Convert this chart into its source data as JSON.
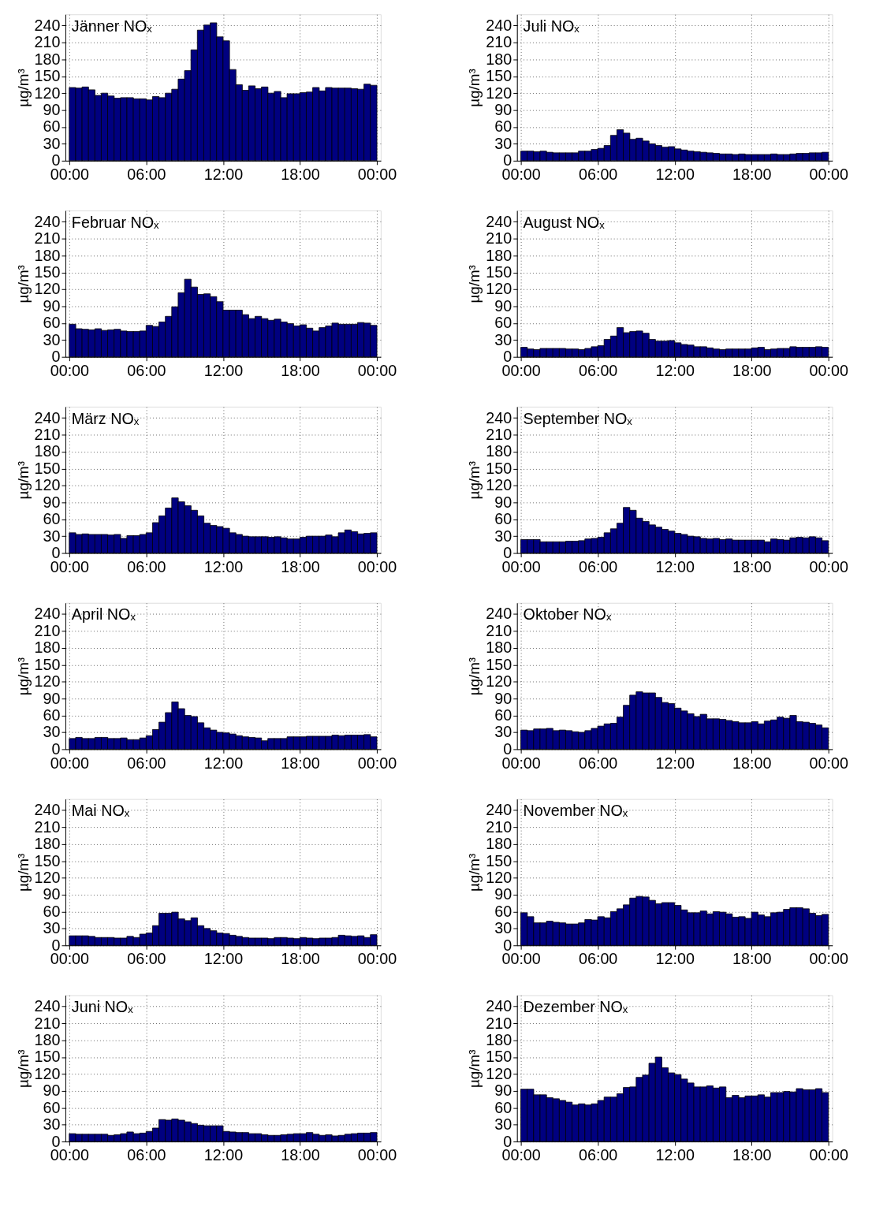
{
  "chart_data": [
    {
      "type": "bar",
      "title": "Jänner NOₓ",
      "ylabel": "µg/m³",
      "color": "#000080",
      "grid": true,
      "xlim": [
        0,
        24
      ],
      "ylim": [
        0,
        260
      ],
      "yticks": [
        0,
        30,
        60,
        90,
        120,
        150,
        180,
        210,
        240
      ],
      "xticks": [
        {
          "value": 0,
          "label": "00:00"
        },
        {
          "value": 6,
          "label": "06:00"
        },
        {
          "value": 12,
          "label": "12:00"
        },
        {
          "value": 18,
          "label": "18:00"
        },
        {
          "value": 24,
          "label": "00:00"
        }
      ],
      "x": [
        0.25,
        0.75,
        1.25,
        1.75,
        2.25,
        2.75,
        3.25,
        3.75,
        4.25,
        4.75,
        5.25,
        5.75,
        6.25,
        6.75,
        7.25,
        7.75,
        8.25,
        8.75,
        9.25,
        9.75,
        10.25,
        10.75,
        11.25,
        11.75,
        12.25,
        12.75,
        13.25,
        13.75,
        14.25,
        14.75,
        15.25,
        15.75,
        16.25,
        16.75,
        17.25,
        17.75,
        18.25,
        18.75,
        19.25,
        19.75,
        20.25,
        20.75,
        21.25,
        21.75,
        22.25,
        22.75,
        23.25,
        23.75
      ],
      "values": [
        130,
        129,
        131,
        126,
        116,
        120,
        115,
        111,
        112,
        112,
        110,
        110,
        108,
        114,
        112,
        120,
        127,
        145,
        160,
        197,
        232,
        241,
        245,
        220,
        213,
        162,
        135,
        125,
        133,
        128,
        131,
        120,
        123,
        112,
        119,
        119,
        121,
        122,
        130,
        124,
        130,
        129,
        129,
        129,
        128,
        127,
        136,
        134
      ]
    },
    {
      "type": "bar",
      "title": "Juli NOₓ",
      "ylabel": "µg/m³",
      "color": "#000080",
      "grid": true,
      "xlim": [
        0,
        24
      ],
      "ylim": [
        0,
        260
      ],
      "yticks": [
        0,
        30,
        60,
        90,
        120,
        150,
        180,
        210,
        240
      ],
      "xticks": [
        {
          "value": 0,
          "label": "00:00"
        },
        {
          "value": 6,
          "label": "06:00"
        },
        {
          "value": 12,
          "label": "12:00"
        },
        {
          "value": 18,
          "label": "18:00"
        },
        {
          "value": 24,
          "label": "00:00"
        }
      ],
      "x": [
        0.25,
        0.75,
        1.25,
        1.75,
        2.25,
        2.75,
        3.25,
        3.75,
        4.25,
        4.75,
        5.25,
        5.75,
        6.25,
        6.75,
        7.25,
        7.75,
        8.25,
        8.75,
        9.25,
        9.75,
        10.25,
        10.75,
        11.25,
        11.75,
        12.25,
        12.75,
        13.25,
        13.75,
        14.25,
        14.75,
        15.25,
        15.75,
        16.25,
        16.75,
        17.25,
        17.75,
        18.25,
        18.75,
        19.25,
        19.75,
        20.25,
        20.75,
        21.25,
        21.75,
        22.25,
        22.75,
        23.25,
        23.75
      ],
      "values": [
        17,
        17,
        16,
        17,
        15,
        14,
        14,
        14,
        14,
        17,
        17,
        20,
        22,
        27,
        45,
        55,
        49,
        38,
        40,
        35,
        30,
        27,
        24,
        25,
        21,
        19,
        17,
        16,
        15,
        14,
        13,
        12,
        12,
        11,
        12,
        11,
        11,
        11,
        11,
        12,
        11,
        11,
        12,
        13,
        13,
        14,
        14,
        15
      ]
    },
    {
      "type": "bar",
      "title": "Februar NOₓ",
      "ylabel": "µg/m³",
      "color": "#000080",
      "grid": true,
      "xlim": [
        0,
        24
      ],
      "ylim": [
        0,
        260
      ],
      "yticks": [
        0,
        30,
        60,
        90,
        120,
        150,
        180,
        210,
        240
      ],
      "xticks": [
        {
          "value": 0,
          "label": "00:00"
        },
        {
          "value": 6,
          "label": "06:00"
        },
        {
          "value": 12,
          "label": "12:00"
        },
        {
          "value": 18,
          "label": "18:00"
        },
        {
          "value": 24,
          "label": "00:00"
        }
      ],
      "x": [
        0.25,
        0.75,
        1.25,
        1.75,
        2.25,
        2.75,
        3.25,
        3.75,
        4.25,
        4.75,
        5.25,
        5.75,
        6.25,
        6.75,
        7.25,
        7.75,
        8.25,
        8.75,
        9.25,
        9.75,
        10.25,
        10.75,
        11.25,
        11.75,
        12.25,
        12.75,
        13.25,
        13.75,
        14.25,
        14.75,
        15.25,
        15.75,
        16.25,
        16.75,
        17.25,
        17.75,
        18.25,
        18.75,
        19.25,
        19.75,
        20.25,
        20.75,
        21.25,
        21.75,
        22.25,
        22.75,
        23.25,
        23.75
      ],
      "values": [
        58,
        50,
        49,
        48,
        50,
        47,
        48,
        49,
        46,
        45,
        45,
        46,
        56,
        54,
        62,
        72,
        89,
        114,
        138,
        124,
        111,
        112,
        107,
        98,
        83,
        83,
        83,
        75,
        68,
        72,
        68,
        65,
        67,
        62,
        59,
        55,
        57,
        51,
        46,
        52,
        55,
        60,
        58,
        58,
        58,
        61,
        60,
        56
      ]
    },
    {
      "type": "bar",
      "title": "August NOₓ",
      "ylabel": "µg/m³",
      "color": "#000080",
      "grid": true,
      "xlim": [
        0,
        24
      ],
      "ylim": [
        0,
        260
      ],
      "yticks": [
        0,
        30,
        60,
        90,
        120,
        150,
        180,
        210,
        240
      ],
      "xticks": [
        {
          "value": 0,
          "label": "00:00"
        },
        {
          "value": 6,
          "label": "06:00"
        },
        {
          "value": 12,
          "label": "12:00"
        },
        {
          "value": 18,
          "label": "18:00"
        },
        {
          "value": 24,
          "label": "00:00"
        }
      ],
      "x": [
        0.25,
        0.75,
        1.25,
        1.75,
        2.25,
        2.75,
        3.25,
        3.75,
        4.25,
        4.75,
        5.25,
        5.75,
        6.25,
        6.75,
        7.25,
        7.75,
        8.25,
        8.75,
        9.25,
        9.75,
        10.25,
        10.75,
        11.25,
        11.75,
        12.25,
        12.75,
        13.25,
        13.75,
        14.25,
        14.75,
        15.25,
        15.75,
        16.25,
        16.75,
        17.25,
        17.75,
        18.25,
        18.75,
        19.25,
        19.75,
        20.25,
        20.75,
        21.25,
        21.75,
        22.25,
        22.75,
        23.25,
        23.75
      ],
      "values": [
        17,
        14,
        13,
        15,
        15,
        15,
        15,
        14,
        14,
        13,
        15,
        18,
        20,
        31,
        37,
        52,
        43,
        45,
        46,
        42,
        31,
        28,
        28,
        29,
        25,
        22,
        21,
        18,
        18,
        16,
        14,
        13,
        14,
        14,
        14,
        14,
        16,
        17,
        13,
        14,
        15,
        15,
        18,
        17,
        17,
        17,
        18,
        17
      ]
    },
    {
      "type": "bar",
      "title": "März NOₓ",
      "ylabel": "µg/m³",
      "color": "#000080",
      "grid": true,
      "xlim": [
        0,
        24
      ],
      "ylim": [
        0,
        260
      ],
      "yticks": [
        0,
        30,
        60,
        90,
        120,
        150,
        180,
        210,
        240
      ],
      "xticks": [
        {
          "value": 0,
          "label": "00:00"
        },
        {
          "value": 6,
          "label": "06:00"
        },
        {
          "value": 12,
          "label": "12:00"
        },
        {
          "value": 18,
          "label": "18:00"
        },
        {
          "value": 24,
          "label": "00:00"
        }
      ],
      "x": [
        0.25,
        0.75,
        1.25,
        1.75,
        2.25,
        2.75,
        3.25,
        3.75,
        4.25,
        4.75,
        5.25,
        5.75,
        6.25,
        6.75,
        7.25,
        7.75,
        8.25,
        8.75,
        9.25,
        9.75,
        10.25,
        10.75,
        11.25,
        11.75,
        12.25,
        12.75,
        13.25,
        13.75,
        14.25,
        14.75,
        15.25,
        15.75,
        16.25,
        16.75,
        17.25,
        17.75,
        18.25,
        18.75,
        19.25,
        19.75,
        20.25,
        20.75,
        21.25,
        21.75,
        22.25,
        22.75,
        23.25,
        23.75
      ],
      "values": [
        36,
        33,
        34,
        33,
        33,
        33,
        32,
        33,
        26,
        31,
        31,
        33,
        36,
        54,
        66,
        80,
        98,
        91,
        84,
        76,
        66,
        53,
        49,
        47,
        44,
        36,
        33,
        30,
        29,
        29,
        29,
        28,
        29,
        27,
        25,
        25,
        28,
        30,
        30,
        30,
        32,
        29,
        36,
        41,
        38,
        34,
        35,
        36
      ]
    },
    {
      "type": "bar",
      "title": "September NOₓ",
      "ylabel": "µg/m³",
      "color": "#000080",
      "grid": true,
      "xlim": [
        0,
        24
      ],
      "ylim": [
        0,
        260
      ],
      "yticks": [
        0,
        30,
        60,
        90,
        120,
        150,
        180,
        210,
        240
      ],
      "xticks": [
        {
          "value": 0,
          "label": "00:00"
        },
        {
          "value": 6,
          "label": "06:00"
        },
        {
          "value": 12,
          "label": "12:00"
        },
        {
          "value": 18,
          "label": "18:00"
        },
        {
          "value": 24,
          "label": "00:00"
        }
      ],
      "x": [
        0.25,
        0.75,
        1.25,
        1.75,
        2.25,
        2.75,
        3.25,
        3.75,
        4.25,
        4.75,
        5.25,
        5.75,
        6.25,
        6.75,
        7.25,
        7.75,
        8.25,
        8.75,
        9.25,
        9.75,
        10.25,
        10.75,
        11.25,
        11.75,
        12.25,
        12.75,
        13.25,
        13.75,
        14.25,
        14.75,
        15.25,
        15.75,
        16.25,
        16.75,
        17.25,
        17.75,
        18.25,
        18.75,
        19.25,
        19.75,
        20.25,
        20.75,
        21.25,
        21.75,
        22.25,
        22.75,
        23.25,
        23.75
      ],
      "values": [
        24,
        24,
        24,
        20,
        20,
        20,
        20,
        21,
        21,
        22,
        25,
        26,
        28,
        36,
        43,
        53,
        81,
        76,
        62,
        56,
        50,
        46,
        42,
        39,
        35,
        33,
        30,
        29,
        26,
        25,
        26,
        24,
        25,
        23,
        23,
        23,
        23,
        23,
        20,
        25,
        24,
        23,
        27,
        28,
        27,
        29,
        27,
        22
      ]
    },
    {
      "type": "bar",
      "title": "April NOₓ",
      "ylabel": "µg/m³",
      "color": "#000080",
      "grid": true,
      "xlim": [
        0,
        24
      ],
      "ylim": [
        0,
        260
      ],
      "yticks": [
        0,
        30,
        60,
        90,
        120,
        150,
        180,
        210,
        240
      ],
      "xticks": [
        {
          "value": 0,
          "label": "00:00"
        },
        {
          "value": 6,
          "label": "06:00"
        },
        {
          "value": 12,
          "label": "12:00"
        },
        {
          "value": 18,
          "label": "18:00"
        },
        {
          "value": 24,
          "label": "00:00"
        }
      ],
      "x": [
        0.25,
        0.75,
        1.25,
        1.75,
        2.25,
        2.75,
        3.25,
        3.75,
        4.25,
        4.75,
        5.25,
        5.75,
        6.25,
        6.75,
        7.25,
        7.75,
        8.25,
        8.75,
        9.25,
        9.75,
        10.25,
        10.75,
        11.25,
        11.75,
        12.25,
        12.75,
        13.25,
        13.75,
        14.25,
        14.75,
        15.25,
        15.75,
        16.25,
        16.75,
        17.25,
        17.75,
        18.25,
        18.75,
        19.25,
        19.75,
        20.25,
        20.75,
        21.25,
        21.75,
        22.25,
        22.75,
        23.25,
        23.75
      ],
      "values": [
        19,
        21,
        19,
        19,
        21,
        21,
        19,
        19,
        20,
        17,
        17,
        20,
        24,
        35,
        48,
        65,
        84,
        72,
        60,
        58,
        47,
        38,
        34,
        30,
        29,
        27,
        24,
        22,
        21,
        20,
        15,
        19,
        19,
        19,
        22,
        22,
        22,
        23,
        23,
        23,
        23,
        25,
        24,
        25,
        25,
        25,
        26,
        22
      ]
    },
    {
      "type": "bar",
      "title": "Oktober NOₓ",
      "ylabel": "µg/m³",
      "color": "#000080",
      "grid": true,
      "xlim": [
        0,
        24
      ],
      "ylim": [
        0,
        260
      ],
      "yticks": [
        0,
        30,
        60,
        90,
        120,
        150,
        180,
        210,
        240
      ],
      "xticks": [
        {
          "value": 0,
          "label": "00:00"
        },
        {
          "value": 6,
          "label": "06:00"
        },
        {
          "value": 12,
          "label": "12:00"
        },
        {
          "value": 18,
          "label": "18:00"
        },
        {
          "value": 24,
          "label": "00:00"
        }
      ],
      "x": [
        0.25,
        0.75,
        1.25,
        1.75,
        2.25,
        2.75,
        3.25,
        3.75,
        4.25,
        4.75,
        5.25,
        5.75,
        6.25,
        6.75,
        7.25,
        7.75,
        8.25,
        8.75,
        9.25,
        9.75,
        10.25,
        10.75,
        11.25,
        11.75,
        12.25,
        12.75,
        13.25,
        13.75,
        14.25,
        14.75,
        15.25,
        15.75,
        16.25,
        16.75,
        17.25,
        17.75,
        18.25,
        18.75,
        19.25,
        19.75,
        20.25,
        20.75,
        21.25,
        21.75,
        22.25,
        22.75,
        23.25,
        23.75
      ],
      "values": [
        34,
        33,
        36,
        36,
        37,
        33,
        34,
        33,
        31,
        30,
        33,
        37,
        41,
        45,
        46,
        57,
        78,
        96,
        102,
        100,
        100,
        92,
        83,
        81,
        73,
        68,
        63,
        58,
        62,
        54,
        54,
        53,
        51,
        49,
        47,
        47,
        49,
        45,
        50,
        52,
        57,
        55,
        60,
        49,
        48,
        46,
        43,
        38
      ]
    },
    {
      "type": "bar",
      "title": "Mai NOₓ",
      "ylabel": "µg/m³",
      "color": "#000080",
      "grid": true,
      "xlim": [
        0,
        24
      ],
      "ylim": [
        0,
        260
      ],
      "yticks": [
        0,
        30,
        60,
        90,
        120,
        150,
        180,
        210,
        240
      ],
      "xticks": [
        {
          "value": 0,
          "label": "00:00"
        },
        {
          "value": 6,
          "label": "06:00"
        },
        {
          "value": 12,
          "label": "12:00"
        },
        {
          "value": 18,
          "label": "18:00"
        },
        {
          "value": 24,
          "label": "00:00"
        }
      ],
      "x": [
        0.25,
        0.75,
        1.25,
        1.75,
        2.25,
        2.75,
        3.25,
        3.75,
        4.25,
        4.75,
        5.25,
        5.75,
        6.25,
        6.75,
        7.25,
        7.75,
        8.25,
        8.75,
        9.25,
        9.75,
        10.25,
        10.75,
        11.25,
        11.75,
        12.25,
        12.75,
        13.25,
        13.75,
        14.25,
        14.75,
        15.25,
        15.75,
        16.25,
        16.75,
        17.25,
        17.75,
        18.25,
        18.75,
        19.25,
        19.75,
        20.25,
        20.75,
        21.25,
        21.75,
        22.25,
        22.75,
        23.25,
        23.75
      ],
      "values": [
        17,
        17,
        17,
        16,
        14,
        14,
        14,
        13,
        13,
        16,
        14,
        20,
        22,
        35,
        57,
        57,
        59,
        47,
        44,
        49,
        35,
        30,
        26,
        22,
        21,
        18,
        16,
        14,
        13,
        13,
        13,
        12,
        14,
        14,
        13,
        12,
        14,
        13,
        12,
        13,
        13,
        14,
        18,
        17,
        16,
        17,
        14,
        19
      ]
    },
    {
      "type": "bar",
      "title": "November NOₓ",
      "ylabel": "µg/m³",
      "color": "#000080",
      "grid": true,
      "xlim": [
        0,
        24
      ],
      "ylim": [
        0,
        260
      ],
      "yticks": [
        0,
        30,
        60,
        90,
        120,
        150,
        180,
        210,
        240
      ],
      "xticks": [
        {
          "value": 0,
          "label": "00:00"
        },
        {
          "value": 6,
          "label": "06:00"
        },
        {
          "value": 12,
          "label": "12:00"
        },
        {
          "value": 18,
          "label": "18:00"
        },
        {
          "value": 24,
          "label": "00:00"
        }
      ],
      "x": [
        0.25,
        0.75,
        1.25,
        1.75,
        2.25,
        2.75,
        3.25,
        3.75,
        4.25,
        4.75,
        5.25,
        5.75,
        6.25,
        6.75,
        7.25,
        7.75,
        8.25,
        8.75,
        9.25,
        9.75,
        10.25,
        10.75,
        11.25,
        11.75,
        12.25,
        12.75,
        13.25,
        13.75,
        14.25,
        14.75,
        15.25,
        15.75,
        16.25,
        16.75,
        17.25,
        17.75,
        18.25,
        18.75,
        19.25,
        19.75,
        20.25,
        20.75,
        21.25,
        21.75,
        22.25,
        22.75,
        23.25,
        23.75
      ],
      "values": [
        58,
        51,
        40,
        40,
        43,
        41,
        40,
        38,
        38,
        40,
        46,
        45,
        51,
        49,
        60,
        65,
        72,
        84,
        87,
        86,
        80,
        74,
        76,
        76,
        71,
        63,
        58,
        58,
        61,
        56,
        60,
        59,
        56,
        50,
        51,
        48,
        59,
        54,
        51,
        58,
        59,
        64,
        67,
        67,
        65,
        57,
        53,
        55
      ]
    },
    {
      "type": "bar",
      "title": "Juni NOₓ",
      "ylabel": "µg/m³",
      "color": "#000080",
      "grid": true,
      "xlim": [
        0,
        24
      ],
      "ylim": [
        0,
        260
      ],
      "yticks": [
        0,
        30,
        60,
        90,
        120,
        150,
        180,
        210,
        240
      ],
      "xticks": [
        {
          "value": 0,
          "label": "00:00"
        },
        {
          "value": 6,
          "label": "06:00"
        },
        {
          "value": 12,
          "label": "12:00"
        },
        {
          "value": 18,
          "label": "18:00"
        },
        {
          "value": 24,
          "label": "00:00"
        }
      ],
      "x": [
        0.25,
        0.75,
        1.25,
        1.75,
        2.25,
        2.75,
        3.25,
        3.75,
        4.25,
        4.75,
        5.25,
        5.75,
        6.25,
        6.75,
        7.25,
        7.75,
        8.25,
        8.75,
        9.25,
        9.75,
        10.25,
        10.75,
        11.25,
        11.75,
        12.25,
        12.75,
        13.25,
        13.75,
        14.25,
        14.75,
        15.25,
        15.75,
        16.25,
        16.75,
        17.25,
        17.75,
        18.25,
        18.75,
        19.25,
        19.75,
        20.25,
        20.75,
        21.25,
        21.75,
        22.25,
        22.75,
        23.25,
        23.75
      ],
      "values": [
        14,
        13,
        13,
        13,
        13,
        13,
        11,
        12,
        14,
        17,
        14,
        15,
        18,
        24,
        39,
        38,
        40,
        38,
        35,
        32,
        29,
        28,
        28,
        28,
        18,
        17,
        16,
        16,
        14,
        14,
        12,
        11,
        11,
        12,
        13,
        14,
        14,
        16,
        13,
        11,
        12,
        10,
        11,
        13,
        14,
        15,
        15,
        16
      ]
    },
    {
      "type": "bar",
      "title": "Dezember NOₓ",
      "ylabel": "µg/m³",
      "color": "#000080",
      "grid": true,
      "xlim": [
        0,
        24
      ],
      "ylim": [
        0,
        260
      ],
      "yticks": [
        0,
        30,
        60,
        90,
        120,
        150,
        180,
        210,
        240
      ],
      "xticks": [
        {
          "value": 0,
          "label": "00:00"
        },
        {
          "value": 6,
          "label": "06:00"
        },
        {
          "value": 12,
          "label": "12:00"
        },
        {
          "value": 18,
          "label": "18:00"
        },
        {
          "value": 24,
          "label": "00:00"
        }
      ],
      "x": [
        0.25,
        0.75,
        1.25,
        1.75,
        2.25,
        2.75,
        3.25,
        3.75,
        4.25,
        4.75,
        5.25,
        5.75,
        6.25,
        6.75,
        7.25,
        7.75,
        8.25,
        8.75,
        9.25,
        9.75,
        10.25,
        10.75,
        11.25,
        11.75,
        12.25,
        12.75,
        13.25,
        13.75,
        14.25,
        14.75,
        15.25,
        15.75,
        16.25,
        16.75,
        17.25,
        17.75,
        18.25,
        18.75,
        19.25,
        19.75,
        20.25,
        20.75,
        21.25,
        21.75,
        22.25,
        22.75,
        23.25,
        23.75
      ],
      "values": [
        93,
        93,
        83,
        83,
        78,
        76,
        73,
        70,
        65,
        67,
        65,
        67,
        73,
        79,
        79,
        85,
        96,
        97,
        114,
        118,
        139,
        150,
        131,
        122,
        119,
        111,
        104,
        97,
        97,
        99,
        95,
        97,
        78,
        82,
        78,
        81,
        81,
        83,
        79,
        87,
        87,
        89,
        88,
        94,
        92,
        92,
        94,
        87
      ]
    }
  ]
}
